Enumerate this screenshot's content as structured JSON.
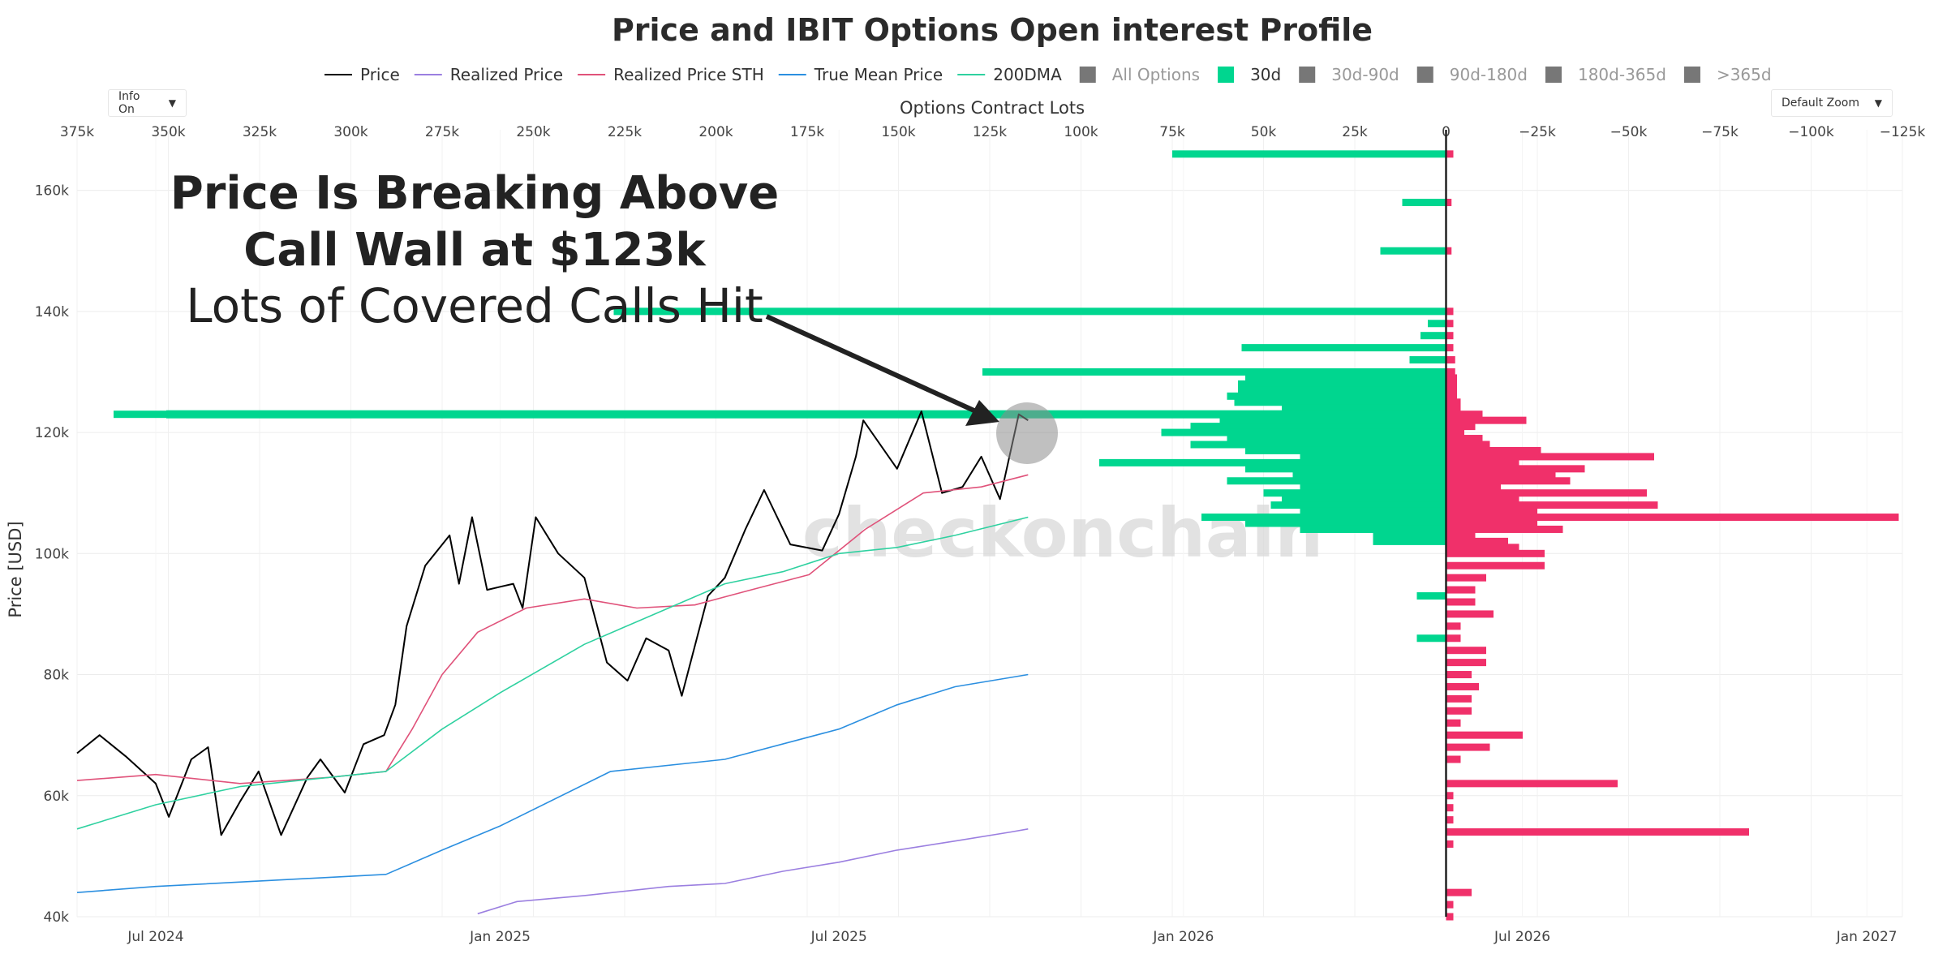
{
  "controls": {
    "info_dropdown": "Info On",
    "zoom_dropdown": "Default Zoom",
    "dropdown_arrow": "▼"
  },
  "legend": [
    {
      "label": "Price",
      "color": "#000000",
      "kind": "line",
      "active": true
    },
    {
      "label": "Realized Price",
      "color": "#9b7fe0",
      "kind": "line",
      "active": true
    },
    {
      "label": "Realized Price STH",
      "color": "#e0527a",
      "kind": "line",
      "active": true
    },
    {
      "label": "True Mean Price",
      "color": "#2b8fe0",
      "kind": "line",
      "active": true
    },
    {
      "label": "200DMA",
      "color": "#2fd1a0",
      "kind": "line",
      "active": true
    },
    {
      "label": "All Options",
      "color": "#777777",
      "kind": "box",
      "active": false
    },
    {
      "label": "30d",
      "color": "#00d68f",
      "kind": "box",
      "active": true
    },
    {
      "label": "30d-90d",
      "color": "#777777",
      "kind": "box",
      "active": false
    },
    {
      "label": "90d-180d",
      "color": "#777777",
      "kind": "box",
      "active": false
    },
    {
      "label": "180d-365d",
      "color": "#777777",
      "kind": "box",
      "active": false
    },
    {
      "label": ">365d",
      "color": "#777777",
      "kind": "box",
      "active": false
    }
  ],
  "annotation": {
    "line1": "Price Is Breaking Above",
    "line2": "Call Wall at $123k",
    "line3": "Lots of Covered Calls Hit"
  },
  "watermark": "checkonchain",
  "chart_data": {
    "type": "line",
    "title": "Price and IBIT Options Open interest Profile",
    "ylabel": "Price [USD]",
    "x2label": "Options Contract Lots",
    "y_range": [
      40000,
      170000
    ],
    "y_ticks": [
      40000,
      60000,
      80000,
      100000,
      120000,
      140000,
      160000
    ],
    "y_tick_labels": [
      "40k",
      "60k",
      "80k",
      "100k",
      "120k",
      "140k",
      "160k"
    ],
    "x_range": [
      "2024-05-20",
      "2027-01-20"
    ],
    "x_ticks": [
      "2024-07-01",
      "2025-01-01",
      "2025-07-01",
      "2026-01-01",
      "2026-07-01",
      "2027-01-01"
    ],
    "x_tick_labels": [
      "Jul 2024",
      "Jan 2025",
      "Jul 2025",
      "Jan 2026",
      "Jul 2026",
      "Jan 2027"
    ],
    "x2_range": [
      375000,
      -125000
    ],
    "x2_ticks": [
      375000,
      350000,
      325000,
      300000,
      275000,
      250000,
      225000,
      200000,
      175000,
      150000,
      125000,
      100000,
      75000,
      50000,
      25000,
      0,
      -25000,
      -50000,
      -75000,
      -100000,
      -125000
    ],
    "x2_tick_labels": [
      "375k",
      "350k",
      "325k",
      "300k",
      "275k",
      "250k",
      "225k",
      "200k",
      "175k",
      "150k",
      "125k",
      "100k",
      "75k",
      "50k",
      "25k",
      "0",
      "−25k",
      "−50k",
      "−75k",
      "−100k",
      "−125k"
    ],
    "grid": true,
    "legend_position": "top",
    "series": [
      {
        "name": "Price",
        "color": "#000000",
        "points": [
          [
            "2024-05-20",
            67000
          ],
          [
            "2024-06-01",
            70000
          ],
          [
            "2024-06-15",
            66500
          ],
          [
            "2024-07-01",
            62000
          ],
          [
            "2024-07-08",
            56500
          ],
          [
            "2024-07-20",
            66000
          ],
          [
            "2024-07-29",
            68000
          ],
          [
            "2024-08-05",
            53500
          ],
          [
            "2024-08-15",
            59000
          ],
          [
            "2024-08-25",
            64000
          ],
          [
            "2024-09-06",
            53500
          ],
          [
            "2024-09-20",
            63000
          ],
          [
            "2024-09-27",
            66000
          ],
          [
            "2024-10-10",
            60500
          ],
          [
            "2024-10-20",
            68500
          ],
          [
            "2024-10-31",
            70000
          ],
          [
            "2024-11-06",
            75000
          ],
          [
            "2024-11-12",
            88000
          ],
          [
            "2024-11-22",
            98000
          ],
          [
            "2024-12-05",
            103000
          ],
          [
            "2024-12-10",
            95000
          ],
          [
            "2024-12-17",
            106000
          ],
          [
            "2024-12-25",
            94000
          ],
          [
            "2025-01-01",
            94500
          ],
          [
            "2025-01-08",
            95000
          ],
          [
            "2025-01-13",
            91000
          ],
          [
            "2025-01-20",
            106000
          ],
          [
            "2025-02-01",
            100000
          ],
          [
            "2025-02-15",
            96000
          ],
          [
            "2025-02-27",
            82000
          ],
          [
            "2025-03-10",
            79000
          ],
          [
            "2025-03-20",
            86000
          ],
          [
            "2025-04-01",
            84000
          ],
          [
            "2025-04-08",
            76500
          ],
          [
            "2025-04-22",
            93000
          ],
          [
            "2025-05-01",
            96000
          ],
          [
            "2025-05-12",
            104000
          ],
          [
            "2025-05-22",
            110500
          ],
          [
            "2025-06-05",
            101500
          ],
          [
            "2025-06-22",
            100500
          ],
          [
            "2025-07-01",
            106500
          ],
          [
            "2025-07-10",
            116000
          ],
          [
            "2025-07-14",
            122000
          ],
          [
            "2025-08-01",
            114000
          ],
          [
            "2025-08-14",
            123500
          ],
          [
            "2025-08-25",
            110000
          ],
          [
            "2025-09-05",
            111000
          ],
          [
            "2025-09-15",
            116000
          ],
          [
            "2025-09-25",
            109000
          ],
          [
            "2025-10-05",
            123000
          ],
          [
            "2025-10-10",
            122000
          ]
        ]
      },
      {
        "name": "Realized Price",
        "color": "#9b7fe0",
        "points": [
          [
            "2024-12-20",
            40500
          ],
          [
            "2025-01-10",
            42500
          ],
          [
            "2025-02-15",
            43500
          ],
          [
            "2025-04-01",
            45000
          ],
          [
            "2025-05-01",
            45500
          ],
          [
            "2025-06-01",
            47500
          ],
          [
            "2025-07-01",
            49000
          ],
          [
            "2025-08-01",
            51000
          ],
          [
            "2025-09-01",
            52500
          ],
          [
            "2025-10-01",
            54000
          ],
          [
            "2025-10-10",
            54500
          ]
        ]
      },
      {
        "name": "Realized Price STH",
        "color": "#e0527a",
        "points": [
          [
            "2024-05-20",
            62500
          ],
          [
            "2024-07-01",
            63500
          ],
          [
            "2024-08-15",
            62000
          ],
          [
            "2024-10-01",
            63000
          ],
          [
            "2024-11-01",
            64000
          ],
          [
            "2024-11-15",
            71000
          ],
          [
            "2024-12-01",
            80000
          ],
          [
            "2024-12-20",
            87000
          ],
          [
            "2025-01-15",
            91000
          ],
          [
            "2025-02-15",
            92500
          ],
          [
            "2025-03-15",
            91000
          ],
          [
            "2025-04-15",
            91500
          ],
          [
            "2025-05-15",
            94000
          ],
          [
            "2025-06-15",
            96500
          ],
          [
            "2025-07-15",
            104000
          ],
          [
            "2025-08-15",
            110000
          ],
          [
            "2025-09-15",
            111000
          ],
          [
            "2025-10-10",
            113000
          ]
        ]
      },
      {
        "name": "True Mean Price",
        "color": "#2b8fe0",
        "points": [
          [
            "2024-05-20",
            44000
          ],
          [
            "2024-07-01",
            45000
          ],
          [
            "2024-09-01",
            46000
          ],
          [
            "2024-11-01",
            47000
          ],
          [
            "2024-12-01",
            51000
          ],
          [
            "2025-01-01",
            55000
          ],
          [
            "2025-03-01",
            64000
          ],
          [
            "2025-05-01",
            66000
          ],
          [
            "2025-07-01",
            71000
          ],
          [
            "2025-08-01",
            75000
          ],
          [
            "2025-09-01",
            78000
          ],
          [
            "2025-10-10",
            80000
          ]
        ]
      },
      {
        "name": "200DMA",
        "color": "#2fd1a0",
        "points": [
          [
            "2024-05-20",
            54500
          ],
          [
            "2024-07-01",
            58500
          ],
          [
            "2024-08-15",
            61500
          ],
          [
            "2024-10-01",
            63000
          ],
          [
            "2024-11-01",
            64000
          ],
          [
            "2024-12-01",
            71000
          ],
          [
            "2025-01-01",
            77000
          ],
          [
            "2025-02-15",
            85000
          ],
          [
            "2025-04-01",
            91000
          ],
          [
            "2025-05-01",
            95000
          ],
          [
            "2025-06-01",
            97000
          ],
          [
            "2025-07-01",
            100000
          ],
          [
            "2025-08-01",
            101000
          ],
          [
            "2025-09-01",
            103000
          ],
          [
            "2025-10-10",
            106000
          ]
        ]
      }
    ],
    "call_wall": {
      "value": 123000,
      "label": "Call Wall at $123k"
    },
    "open_interest_30d": [
      {
        "price": 166000,
        "lots": 75000
      },
      {
        "price": 158000,
        "lots": 12000
      },
      {
        "price": 150000,
        "lots": 18000
      },
      {
        "price": 140000,
        "lots": 228000
      },
      {
        "price": 138000,
        "lots": 5000
      },
      {
        "price": 136000,
        "lots": 7000
      },
      {
        "price": 134000,
        "lots": 56000
      },
      {
        "price": 132000,
        "lots": 10000
      },
      {
        "price": 130000,
        "lots": 127000
      },
      {
        "price": 129000,
        "lots": 55000
      },
      {
        "price": 128000,
        "lots": 57000
      },
      {
        "price": 127000,
        "lots": 57000
      },
      {
        "price": 126000,
        "lots": 60000
      },
      {
        "price": 125000,
        "lots": 58000
      },
      {
        "price": 124000,
        "lots": 45000
      },
      {
        "price": 123000,
        "lots": 365000
      },
      {
        "price": 122000,
        "lots": 62000
      },
      {
        "price": 121000,
        "lots": 70000
      },
      {
        "price": 120000,
        "lots": 78000
      },
      {
        "price": 119000,
        "lots": 60000
      },
      {
        "price": 118000,
        "lots": 70000
      },
      {
        "price": 117000,
        "lots": 55000
      },
      {
        "price": 116000,
        "lots": 40000
      },
      {
        "price": 115000,
        "lots": 95000
      },
      {
        "price": 114000,
        "lots": 55000
      },
      {
        "price": 113000,
        "lots": 42000
      },
      {
        "price": 112000,
        "lots": 60000
      },
      {
        "price": 111000,
        "lots": 40000
      },
      {
        "price": 110000,
        "lots": 50000
      },
      {
        "price": 109000,
        "lots": 45000
      },
      {
        "price": 108000,
        "lots": 48000
      },
      {
        "price": 107000,
        "lots": 40000
      },
      {
        "price": 106000,
        "lots": 67000
      },
      {
        "price": 105000,
        "lots": 55000
      },
      {
        "price": 104000,
        "lots": 40000
      },
      {
        "price": 103000,
        "lots": 20000
      },
      {
        "price": 102000,
        "lots": 20000
      },
      {
        "price": 93000,
        "lots": 8000
      },
      {
        "price": 86000,
        "lots": 8000
      }
    ],
    "open_interest_puts": [
      {
        "price": 166000,
        "lots": -2000
      },
      {
        "price": 158000,
        "lots": -1500
      },
      {
        "price": 150000,
        "lots": -1500
      },
      {
        "price": 140000,
        "lots": -2000
      },
      {
        "price": 138000,
        "lots": -2000
      },
      {
        "price": 136000,
        "lots": -2000
      },
      {
        "price": 134000,
        "lots": -2000
      },
      {
        "price": 132000,
        "lots": -2500
      },
      {
        "price": 130000,
        "lots": -2500
      },
      {
        "price": 129000,
        "lots": -3000
      },
      {
        "price": 128000,
        "lots": -3000
      },
      {
        "price": 127000,
        "lots": -3000
      },
      {
        "price": 126000,
        "lots": -3000
      },
      {
        "price": 125000,
        "lots": -4000
      },
      {
        "price": 124000,
        "lots": -4000
      },
      {
        "price": 123000,
        "lots": -10000
      },
      {
        "price": 122000,
        "lots": -22000
      },
      {
        "price": 121000,
        "lots": -8000
      },
      {
        "price": 120000,
        "lots": -5000
      },
      {
        "price": 119000,
        "lots": -10000
      },
      {
        "price": 118000,
        "lots": -12000
      },
      {
        "price": 117000,
        "lots": -26000
      },
      {
        "price": 116000,
        "lots": -57000
      },
      {
        "price": 115000,
        "lots": -20000
      },
      {
        "price": 114000,
        "lots": -38000
      },
      {
        "price": 113000,
        "lots": -30000
      },
      {
        "price": 112000,
        "lots": -34000
      },
      {
        "price": 111000,
        "lots": -15000
      },
      {
        "price": 110000,
        "lots": -55000
      },
      {
        "price": 109000,
        "lots": -20000
      },
      {
        "price": 108000,
        "lots": -58000
      },
      {
        "price": 107000,
        "lots": -25000
      },
      {
        "price": 106000,
        "lots": -124000
      },
      {
        "price": 105000,
        "lots": -25000
      },
      {
        "price": 104000,
        "lots": -32000
      },
      {
        "price": 103000,
        "lots": -8000
      },
      {
        "price": 102000,
        "lots": -17000
      },
      {
        "price": 101000,
        "lots": -20000
      },
      {
        "price": 100000,
        "lots": -27000
      },
      {
        "price": 98000,
        "lots": -27000
      },
      {
        "price": 96000,
        "lots": -11000
      },
      {
        "price": 94000,
        "lots": -8000
      },
      {
        "price": 92000,
        "lots": -8000
      },
      {
        "price": 90000,
        "lots": -13000
      },
      {
        "price": 88000,
        "lots": -4000
      },
      {
        "price": 86000,
        "lots": -4000
      },
      {
        "price": 84000,
        "lots": -11000
      },
      {
        "price": 82000,
        "lots": -11000
      },
      {
        "price": 80000,
        "lots": -7000
      },
      {
        "price": 78000,
        "lots": -9000
      },
      {
        "price": 76000,
        "lots": -7000
      },
      {
        "price": 74000,
        "lots": -7000
      },
      {
        "price": 72000,
        "lots": -4000
      },
      {
        "price": 70000,
        "lots": -21000
      },
      {
        "price": 68000,
        "lots": -12000
      },
      {
        "price": 66000,
        "lots": -4000
      },
      {
        "price": 62000,
        "lots": -47000
      },
      {
        "price": 60000,
        "lots": -2000
      },
      {
        "price": 58000,
        "lots": -2000
      },
      {
        "price": 56000,
        "lots": -2000
      },
      {
        "price": 54000,
        "lots": -83000
      },
      {
        "price": 52000,
        "lots": -2000
      },
      {
        "price": 44000,
        "lots": -7000
      },
      {
        "price": 42000,
        "lots": -2000
      },
      {
        "price": 40000,
        "lots": -2000
      }
    ]
  }
}
